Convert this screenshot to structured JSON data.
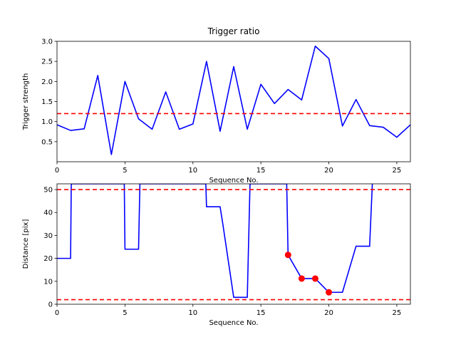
{
  "chart_data": [
    {
      "type": "line",
      "title": "Trigger ratio",
      "xlabel": "Sequence No.",
      "ylabel": "Trigger strength",
      "xlim": [
        0,
        26
      ],
      "ylim": [
        0.0,
        3.0
      ],
      "xticks": [
        0,
        5,
        10,
        15,
        20,
        25
      ],
      "yticks": [
        0.5,
        1.0,
        1.5,
        2.0,
        2.5,
        3.0
      ],
      "ytick_labels": [
        "0.5",
        "1.0",
        "1.5",
        "2.0",
        "2.5",
        "3.0"
      ],
      "grid": false,
      "series": [
        {
          "color": "#0000ff",
          "style": "solid",
          "x": [
            0,
            1,
            2,
            3,
            4,
            5,
            6,
            7,
            8,
            9,
            10,
            11,
            12,
            13,
            14,
            15,
            16,
            17,
            18,
            19,
            20,
            21,
            22,
            23,
            24,
            25,
            26
          ],
          "y": [
            0.92,
            0.78,
            0.82,
            2.15,
            0.18,
            2.0,
            1.07,
            0.81,
            1.74,
            0.81,
            0.94,
            2.5,
            0.76,
            2.37,
            0.81,
            1.93,
            1.45,
            1.8,
            1.54,
            2.88,
            2.57,
            0.89,
            1.55,
            0.9,
            0.86,
            0.61,
            0.92
          ]
        }
      ],
      "hlines": [
        {
          "y": 1.2,
          "color": "#ff0000",
          "style": "dashed"
        }
      ]
    },
    {
      "type": "line",
      "title": "",
      "xlabel": "Sequence No.",
      "ylabel": "Distance [pix]",
      "xlim": [
        0,
        26
      ],
      "ylim": [
        0,
        52.5
      ],
      "xticks": [
        0,
        5,
        10,
        15,
        20,
        25
      ],
      "yticks": [
        0,
        10,
        20,
        30,
        40,
        50
      ],
      "grid": false,
      "series": [
        {
          "color": "#0000ff",
          "style": "solid",
          "x": [
            0,
            1,
            1.05,
            1.15,
            4.85,
            4.95,
            5,
            6,
            6.1,
            6.2,
            10.85,
            10.95,
            11,
            12,
            12.2,
            13,
            14,
            14.2,
            16.8,
            16.9,
            17,
            18,
            19,
            20,
            21,
            22,
            23,
            23.2
          ],
          "y": [
            20,
            20,
            52.5,
            52.5,
            52.5,
            52.5,
            24,
            24,
            52.5,
            52.5,
            52.5,
            52.5,
            42.5,
            42.5,
            35,
            3,
            3,
            52.5,
            52.5,
            52.5,
            21.5,
            11.2,
            11.2,
            5.2,
            5.2,
            25.3,
            25.3,
            52.5
          ]
        },
        {
          "type": "scatter",
          "color": "#ff0000",
          "x": [
            17,
            18,
            19,
            20
          ],
          "y": [
            21.5,
            11.2,
            11.2,
            5.2
          ]
        }
      ],
      "hlines": [
        {
          "y": 50,
          "color": "#ff0000",
          "style": "dashed"
        },
        {
          "y": 2,
          "color": "#ff0000",
          "style": "dashed"
        }
      ]
    }
  ]
}
